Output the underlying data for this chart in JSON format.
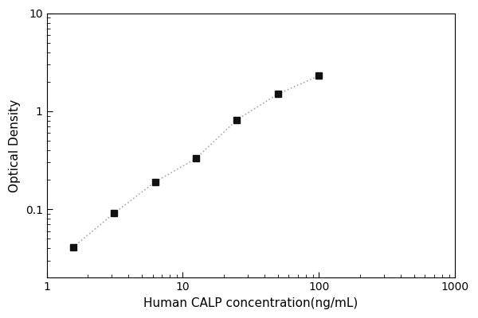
{
  "x": [
    1.563,
    3.125,
    6.25,
    12.5,
    25.0,
    50.0,
    100.0
  ],
  "y": [
    0.041,
    0.091,
    0.19,
    0.33,
    0.82,
    1.5,
    2.3
  ],
  "xlabel": "Human CALP concentration(ng/mL)",
  "ylabel": "Optical Density",
  "xlim": [
    1.0,
    1000.0
  ],
  "ylim": [
    0.02,
    10.0
  ],
  "line_color": "#aaaaaa",
  "marker_color": "#111111",
  "marker": "s",
  "marker_size": 6,
  "line_style": ":",
  "line_width": 1.2,
  "background_color": "#ffffff",
  "xlabel_fontsize": 11,
  "ylabel_fontsize": 11,
  "yticks": [
    0.1,
    1.0,
    10.0
  ],
  "ytick_labels": [
    "0.1",
    "1",
    "10"
  ],
  "xticks": [
    1,
    10,
    100,
    1000
  ],
  "xtick_labels": [
    "1",
    "10",
    "100",
    "1000"
  ]
}
